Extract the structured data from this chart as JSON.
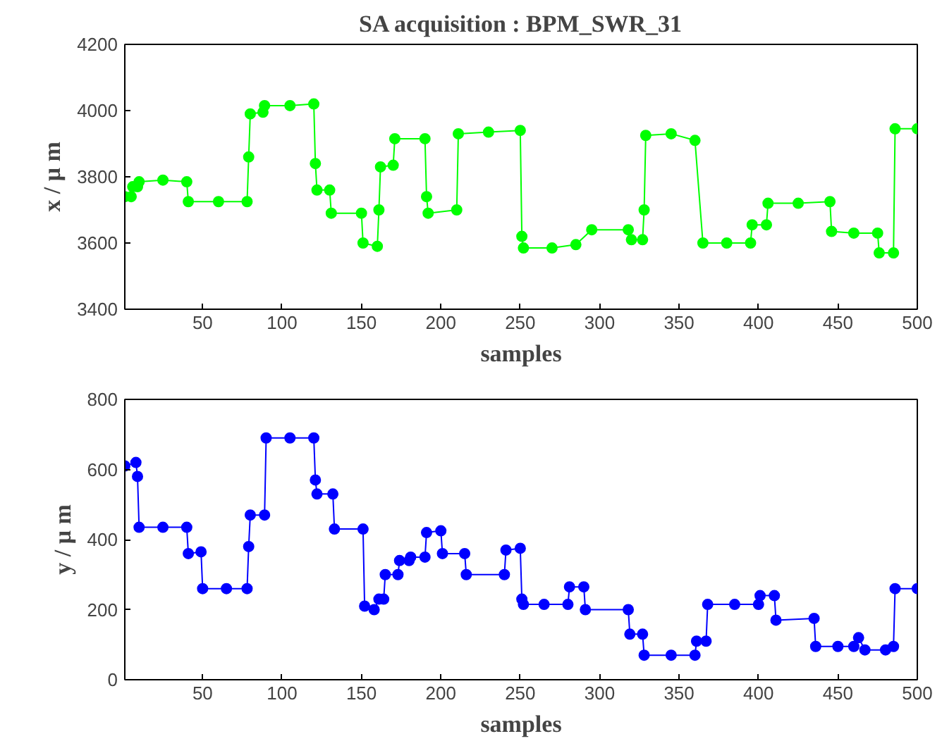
{
  "chart_data": [
    {
      "type": "line",
      "title": "SA acquisition : BPM_SWR_31",
      "xlabel": "samples",
      "ylabel": "x / μ m",
      "x": [
        1,
        5,
        6,
        9,
        10,
        25,
        40,
        41,
        60,
        78,
        79,
        80,
        88,
        89,
        105,
        120,
        121,
        122,
        130,
        131,
        150,
        151,
        160,
        161,
        162,
        170,
        171,
        190,
        191,
        192,
        210,
        211,
        230,
        250,
        251,
        252,
        270,
        285,
        295,
        318,
        320,
        327,
        328,
        329,
        345,
        360,
        365,
        380,
        395,
        396,
        405,
        406,
        425,
        445,
        446,
        460,
        475,
        476,
        485,
        486,
        500
      ],
      "series": [
        {
          "color": "#00ff00",
          "values": [
            3740,
            3740,
            3770,
            3770,
            3785,
            3790,
            3785,
            3725,
            3725,
            3725,
            3860,
            3990,
            3995,
            4015,
            4015,
            4020,
            3840,
            3760,
            3760,
            3690,
            3690,
            3600,
            3590,
            3700,
            3830,
            3835,
            3915,
            3915,
            3740,
            3690,
            3700,
            3930,
            3935,
            3940,
            3620,
            3585,
            3585,
            3595,
            3640,
            3640,
            3610,
            3610,
            3700,
            3925,
            3930,
            3910,
            3600,
            3600,
            3600,
            3655,
            3655,
            3720,
            3720,
            3725,
            3635,
            3630,
            3630,
            3570,
            3570,
            3945,
            3945
          ]
        }
      ],
      "xlim": [
        1,
        500
      ],
      "ylim": [
        3400,
        4200
      ],
      "xticks": [
        50,
        100,
        150,
        200,
        250,
        300,
        350,
        400,
        450,
        500
      ],
      "yticks": [
        3400,
        3600,
        3800,
        4000,
        4200
      ],
      "marker": "circle",
      "grid": false
    },
    {
      "type": "line",
      "xlabel": "samples",
      "ylabel": "y / μ m",
      "x": [
        1,
        8,
        9,
        10,
        25,
        40,
        41,
        49,
        50,
        65,
        78,
        79,
        80,
        89,
        90,
        105,
        120,
        121,
        122,
        132,
        133,
        151,
        152,
        158,
        161,
        164,
        165,
        173,
        174,
        180,
        181,
        190,
        191,
        200,
        201,
        215,
        216,
        240,
        241,
        250,
        251,
        252,
        265,
        280,
        281,
        290,
        291,
        318,
        319,
        327,
        328,
        345,
        360,
        361,
        367,
        368,
        385,
        400,
        401,
        410,
        411,
        435,
        436,
        450,
        460,
        463,
        467,
        480,
        485,
        486,
        500
      ],
      "series": [
        {
          "color": "#0000ff",
          "values": [
            610,
            620,
            580,
            435,
            435,
            435,
            360,
            365,
            260,
            260,
            260,
            380,
            470,
            470,
            690,
            690,
            690,
            570,
            530,
            530,
            430,
            430,
            210,
            200,
            230,
            230,
            300,
            300,
            340,
            340,
            350,
            350,
            420,
            425,
            360,
            360,
            300,
            300,
            370,
            375,
            230,
            215,
            215,
            215,
            265,
            265,
            200,
            200,
            130,
            130,
            70,
            70,
            70,
            110,
            110,
            215,
            215,
            215,
            240,
            240,
            170,
            175,
            95,
            95,
            95,
            120,
            85,
            85,
            95,
            260,
            260
          ]
        }
      ],
      "xlim": [
        1,
        500
      ],
      "ylim": [
        0,
        800
      ],
      "xticks": [
        50,
        100,
        150,
        200,
        250,
        300,
        350,
        400,
        450,
        500
      ],
      "yticks": [
        0,
        200,
        400,
        600,
        800
      ],
      "marker": "circle",
      "grid": false
    }
  ]
}
